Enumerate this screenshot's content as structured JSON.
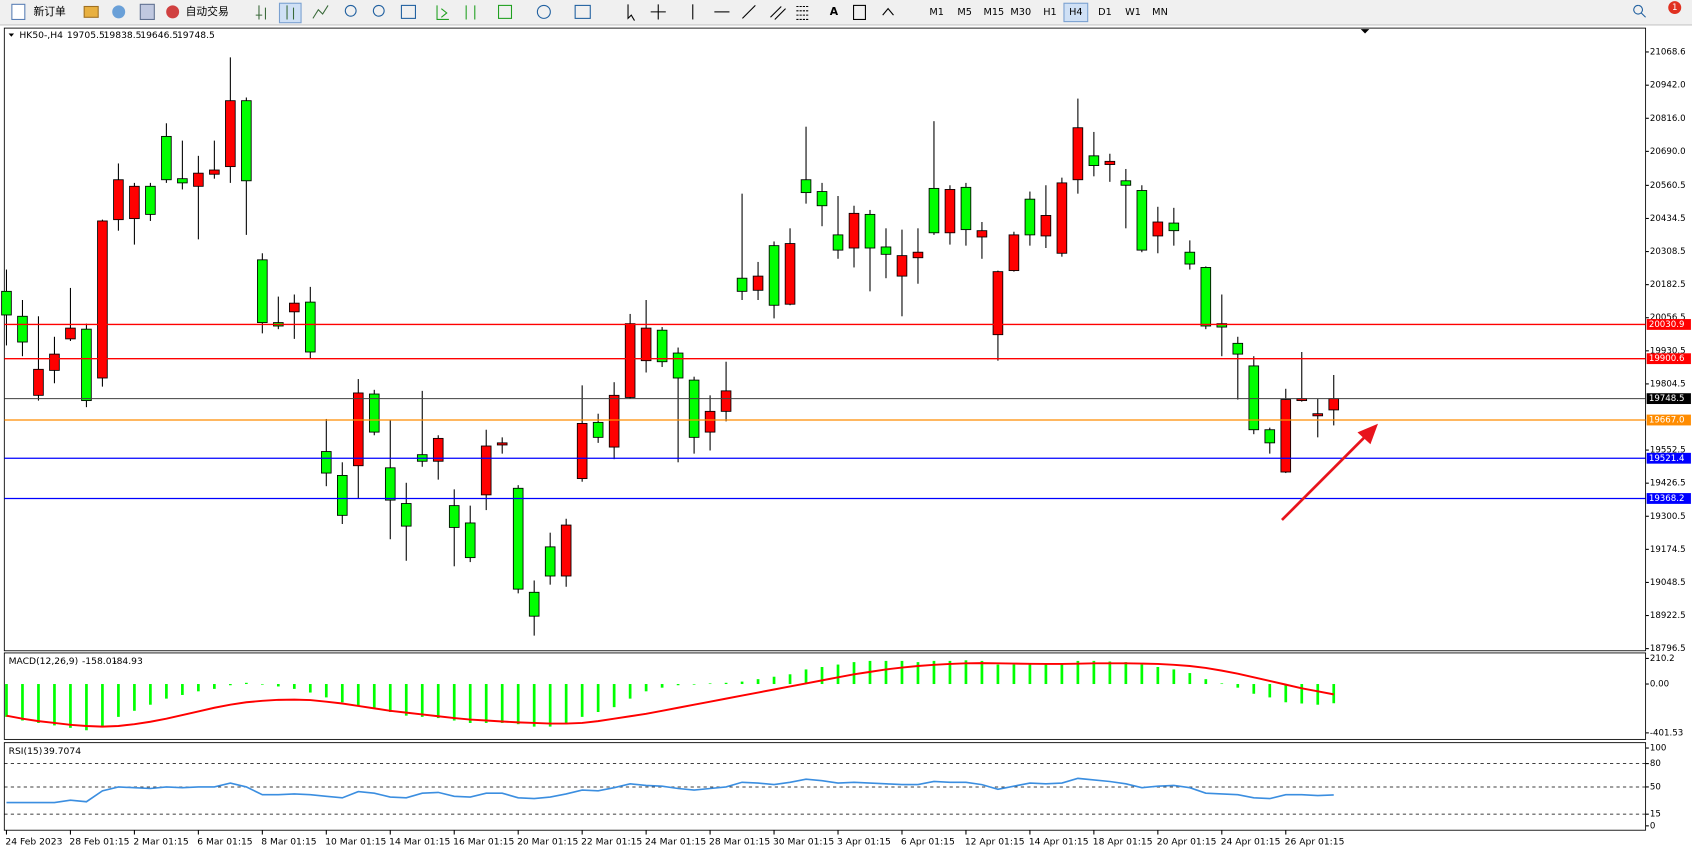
{
  "toolbar": {
    "buttons": [
      "新订单",
      "自动交易"
    ],
    "timeframes": [
      "M1",
      "M5",
      "M15",
      "M30",
      "H1",
      "H4",
      "D1",
      "W1",
      "MN"
    ],
    "selected_timeframe": "H4",
    "alert_count": 1
  },
  "chart_data": [
    {
      "type": "candlestick",
      "title": "HK50-,H4",
      "categories": [
        "24 Feb 2023",
        null,
        null,
        null,
        "28 Feb 01:15",
        null,
        null,
        null,
        "2 Mar 01:15",
        null,
        null,
        null,
        "6 Mar 01:15",
        null,
        null,
        null,
        "8 Mar 01:15",
        null,
        null,
        null,
        "10 Mar 01:15",
        null,
        null,
        null,
        "14 Mar 01:15",
        null,
        null,
        null,
        "16 Mar 01:15",
        null,
        null,
        null,
        "20 Mar 01:15",
        null,
        null,
        null,
        "22 Mar 01:15",
        null,
        null,
        null,
        "24 Mar 01:15",
        null,
        null,
        null,
        "28 Mar 01:15",
        null,
        null,
        null,
        "30 Mar 01:15",
        null,
        null,
        null,
        "3 Apr 01:15",
        null,
        null,
        null,
        "6 Apr 01:15",
        null,
        null,
        null,
        "12 Apr 01:15",
        null,
        null,
        null,
        "14 Apr 01:15",
        null,
        null,
        null,
        "18 Apr 01:15",
        null,
        null,
        null,
        "20 Apr 01:15",
        null,
        null,
        null,
        "24 Apr 01:15",
        null,
        null,
        null,
        "26 Apr 01:15",
        null,
        null,
        null
      ],
      "open": [
        20157,
        20062,
        19761,
        19856,
        19976,
        20013,
        19827,
        20430,
        20434,
        20557,
        20747,
        20586,
        20557,
        20603,
        20632,
        20883,
        20277,
        20038,
        20079,
        20116,
        19547,
        19456,
        19493,
        19766,
        19485,
        19349,
        19535,
        19510,
        19341,
        19275,
        19382,
        19572,
        19407,
        19011,
        19184,
        19073,
        19444,
        19658,
        19564,
        19753,
        19893,
        20009,
        19922,
        19819,
        19621,
        19700,
        20207,
        20161,
        20331,
        20108,
        20582,
        20537,
        20372,
        20322,
        20450,
        20326,
        20215,
        20285,
        20549,
        20380,
        20553,
        20364,
        19992,
        20236,
        20508,
        20368,
        20302,
        20582,
        20673,
        20640,
        20578,
        20541,
        20368,
        20417,
        20306,
        20248,
        20034,
        19959,
        19873,
        19630,
        19469,
        19741,
        19683,
        19705.5
      ],
      "high": [
        20240,
        20124,
        20062,
        19984,
        20170,
        20034,
        20430,
        20644,
        20570,
        20570,
        20797,
        20731,
        20673,
        20731,
        21048,
        20895,
        20302,
        20137,
        20145,
        20174,
        19671,
        19506,
        19823,
        19782,
        19667,
        19428,
        19778,
        19609,
        19403,
        19341,
        19630,
        19601,
        19419,
        19056,
        19238,
        19291,
        19799,
        19691,
        19811,
        20071,
        20124,
        20021,
        19943,
        19832,
        19761,
        19889,
        20529,
        20269,
        20347,
        20397,
        20784,
        20570,
        20520,
        20483,
        20467,
        20397,
        20392,
        20397,
        20805,
        20561,
        20570,
        20421,
        20236,
        20384,
        20537,
        20561,
        20590,
        20891,
        20764,
        20681,
        20623,
        20561,
        20479,
        20475,
        20351,
        20252,
        20145,
        19984,
        19910,
        19638,
        19786,
        19926,
        19749,
        19838.5
      ],
      "low": [
        19951,
        19910,
        19741,
        19807,
        19968,
        19716,
        19794,
        20388,
        20335,
        20425,
        20570,
        20545,
        20355,
        20586,
        20570,
        20372,
        19997,
        20013,
        19976,
        19902,
        19415,
        19271,
        19370,
        19609,
        19213,
        19131,
        19489,
        19440,
        19110,
        19126,
        19324,
        19539,
        19007,
        18846,
        19040,
        19032,
        19432,
        19580,
        19518,
        19749,
        19848,
        19869,
        19506,
        19539,
        19551,
        19662,
        20124,
        20124,
        20054,
        20104,
        20491,
        20405,
        20281,
        20248,
        20157,
        20207,
        20062,
        20186,
        20372,
        20335,
        20331,
        20281,
        19893,
        20232,
        20331,
        20322,
        20289,
        20529,
        20595,
        20574,
        20397,
        20306,
        20302,
        20331,
        20240,
        20013,
        19910,
        19745,
        19613,
        19539,
        19465,
        19737,
        19601,
        19646.5
      ],
      "close": [
        20067,
        19964,
        19860,
        19918,
        20017,
        19741,
        20425,
        20582,
        20557,
        20450,
        20582,
        20570,
        20607,
        20619,
        20883,
        20578,
        20038,
        20025,
        20112,
        19926,
        19465,
        19304,
        19770,
        19621,
        19362,
        19263,
        19510,
        19597,
        19258,
        19143,
        19568,
        19580,
        19023,
        18920,
        19073,
        19267,
        19654,
        19601,
        19761,
        20034,
        20017,
        19889,
        19827,
        19601,
        19700,
        19778,
        20157,
        20215,
        20104,
        20339,
        20533,
        20483,
        20314,
        20454,
        20322,
        20298,
        20293,
        20306,
        20380,
        20545,
        20392,
        20388,
        20232,
        20372,
        20372,
        20446,
        20570,
        20780,
        20636,
        20652,
        20561,
        20314,
        20421,
        20388,
        20261,
        20025,
        20021,
        19918,
        19630,
        19580,
        19745,
        19749,
        19691,
        19748.5
      ],
      "up_color": "#ff0000",
      "down_color": "#00ff00",
      "ylim": [
        18788.3,
        21159.4
      ],
      "yticks": [
        21068.6,
        {
          "value": 20942,
          "label": "20942.0"
        },
        {
          "value": 20816,
          "label": "20816.0"
        },
        {
          "value": 20690,
          "label": "20690.0"
        },
        20560.5,
        20434.5,
        20308.5,
        20182.5,
        20056.5,
        19930.5,
        19804.5,
        19552.5,
        19426.5,
        19300.5,
        19174.5,
        19048.5,
        18922.5,
        18796.5
      ],
      "levels": [
        {
          "value": 20030.9,
          "color": "#ff0000"
        },
        {
          "value": 19900.6,
          "color": "#ff0000"
        },
        {
          "value": 19667.0,
          "label": "19667.0",
          "color": "#ff8c00"
        },
        {
          "value": 19521.4,
          "color": "#0000ff"
        },
        {
          "value": 19368.2,
          "color": "#0000ff"
        }
      ]
    },
    {
      "type": "macd",
      "title": "MACD(12,26,9)",
      "histogram": {
        "color": "#00ff00",
        "values": [
          -270,
          -300,
          -320,
          -340,
          -360,
          -380,
          -350,
          -270,
          -220,
          -170,
          -120,
          -90,
          -60,
          -40,
          -10,
          10,
          -5,
          -20,
          -40,
          -70,
          -110,
          -150,
          -180,
          -200,
          -230,
          -260,
          -270,
          -280,
          -300,
          -320,
          -320,
          -320,
          -330,
          -350,
          -350,
          -330,
          -270,
          -230,
          -190,
          -120,
          -60,
          -30,
          -10,
          -5,
          5,
          10,
          20,
          40,
          60,
          80,
          120,
          140,
          160,
          180,
          190,
          190,
          190,
          180,
          190,
          190,
          195,
          190,
          160,
          160,
          165,
          165,
          170,
          190,
          190,
          185,
          180,
          160,
          140,
          120,
          90,
          40,
          5,
          -30,
          -80,
          -110,
          -150,
          -160,
          -170,
          -158.01
        ]
      },
      "signal": {
        "color": "#ff0000",
        "values": [
          -260,
          -285,
          -305,
          -320,
          -335,
          -345,
          -350,
          -345,
          -330,
          -310,
          -285,
          -255,
          -225,
          -195,
          -170,
          -150,
          -138,
          -130,
          -128,
          -132,
          -145,
          -160,
          -180,
          -200,
          -220,
          -235,
          -250,
          -265,
          -280,
          -292,
          -300,
          -308,
          -315,
          -320,
          -325,
          -325,
          -320,
          -305,
          -285,
          -265,
          -245,
          -220,
          -195,
          -170,
          -145,
          -120,
          -95,
          -70,
          -45,
          -20,
          5,
          30,
          55,
          80,
          100,
          120,
          135,
          148,
          158,
          165,
          170,
          172,
          170,
          168,
          166,
          165,
          165,
          167,
          170,
          170,
          170,
          168,
          165,
          158,
          148,
          132,
          110,
          85,
          55,
          25,
          -5,
          -35,
          -60,
          -84.93
        ]
      },
      "ylim": [
        -455.2,
        255.5
      ],
      "yticks": [
        210.2,
        {
          "value": 0,
          "label": "0.00"
        },
        -401.53
      ]
    },
    {
      "type": "rsi",
      "title": "RSI(15)",
      "series": [
        {
          "color": "#3b8ee0",
          "values": [
            30,
            30,
            30,
            30,
            33,
            31,
            45,
            50,
            49,
            48,
            50,
            49,
            50,
            50,
            55,
            50,
            40,
            40,
            41,
            40,
            38,
            36,
            44,
            42,
            37,
            36,
            42,
            43,
            38,
            37,
            42,
            42,
            36,
            35,
            37,
            41,
            46,
            45,
            49,
            54,
            52,
            51,
            48,
            46,
            48,
            50,
            56,
            55,
            53,
            56,
            60,
            58,
            55,
            56,
            55,
            54,
            53,
            53,
            57,
            56,
            56,
            53,
            47,
            51,
            55,
            54,
            55,
            61,
            59,
            57,
            54,
            49,
            51,
            52,
            49,
            42,
            41,
            40,
            36,
            35,
            40,
            40,
            39,
            39.7074
          ]
        }
      ],
      "ylim": [
        -5.6,
        106.9
      ],
      "yticks": [
        100,
        80,
        50,
        15,
        0
      ],
      "levels": [
        80,
        50,
        15
      ],
      "level_style": "dashed"
    }
  ]
}
